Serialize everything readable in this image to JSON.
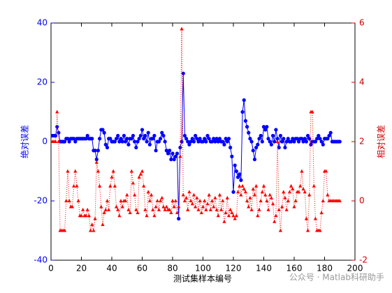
{
  "chart_data": {
    "type": "line",
    "xlabel": "测试集样本编号",
    "ylabel": "绝对误差",
    "y2label": "相对误差",
    "watermark": "公众号 · Matlab科研助手",
    "xlim": [
      0,
      200
    ],
    "xticks": [
      0,
      20,
      40,
      60,
      80,
      100,
      120,
      140,
      160,
      180,
      200
    ],
    "ylim": [
      -40,
      40
    ],
    "yticks": [
      -40,
      -20,
      0,
      20,
      40
    ],
    "y2lim": [
      -2,
      6
    ],
    "y2ticks": [
      -2,
      0,
      2,
      4,
      6
    ],
    "left_axis_color": "#0000ff",
    "right_axis_color": "#cc0000",
    "x": [
      1,
      2,
      3,
      4,
      5,
      6,
      7,
      8,
      9,
      10,
      11,
      12,
      13,
      14,
      15,
      16,
      17,
      18,
      19,
      20,
      21,
      22,
      23,
      24,
      25,
      26,
      27,
      28,
      29,
      30,
      31,
      32,
      33,
      34,
      35,
      36,
      37,
      38,
      39,
      40,
      41,
      42,
      43,
      44,
      45,
      46,
      47,
      48,
      49,
      50,
      51,
      52,
      53,
      54,
      55,
      56,
      57,
      58,
      59,
      60,
      61,
      62,
      63,
      64,
      65,
      66,
      67,
      68,
      69,
      70,
      71,
      72,
      73,
      74,
      75,
      76,
      77,
      78,
      79,
      80,
      81,
      82,
      83,
      84,
      85,
      86,
      87,
      88,
      89,
      90,
      91,
      92,
      93,
      94,
      95,
      96,
      97,
      98,
      99,
      100,
      101,
      102,
      103,
      104,
      105,
      106,
      107,
      108,
      109,
      110,
      111,
      112,
      113,
      114,
      115,
      116,
      117,
      118,
      119,
      120,
      121,
      122,
      123,
      124,
      125,
      126,
      127,
      128,
      129,
      130,
      131,
      132,
      133,
      134,
      135,
      136,
      137,
      138,
      139,
      140,
      141,
      142,
      143,
      144,
      145,
      146,
      147,
      148,
      149,
      150,
      151,
      152,
      153,
      154,
      155,
      156,
      157,
      158,
      159,
      160,
      161,
      162,
      163,
      164,
      165,
      166,
      167,
      168,
      169,
      170,
      171,
      172,
      173,
      174,
      175,
      176,
      177,
      178,
      179,
      180,
      181,
      182,
      183,
      184,
      185,
      186,
      187,
      188,
      189,
      190
    ],
    "series": [
      {
        "color": "#0000ff",
        "style": "solid",
        "marker": "circle",
        "values": [
          2,
          2,
          2,
          5,
          3,
          0,
          0,
          0,
          0,
          1,
          1,
          0,
          1,
          1,
          1,
          0,
          1,
          1,
          1,
          1,
          1,
          1,
          1,
          2,
          1,
          1,
          1,
          -3,
          -3,
          -6,
          -3,
          1,
          4,
          4,
          3,
          -1,
          -2,
          1,
          1,
          0,
          0,
          0,
          1,
          2,
          0,
          1,
          0,
          2,
          0,
          1,
          -1,
          1,
          1,
          2,
          0,
          -2,
          0,
          1,
          2,
          4,
          1,
          2,
          0,
          3,
          -1,
          1,
          1,
          2,
          -3,
          0,
          0,
          1,
          3,
          2,
          0,
          -3,
          -4,
          -3,
          -6,
          -4,
          -6,
          -5,
          -4,
          -26,
          -2,
          0,
          23,
          2,
          1,
          0,
          -1,
          0,
          1,
          0,
          2,
          1,
          0,
          1,
          0,
          0,
          1,
          0,
          2,
          1,
          0,
          0,
          1,
          0,
          1,
          0,
          1,
          0,
          0,
          -1,
          1,
          0,
          1,
          -2,
          -5,
          -17,
          -8,
          -10,
          -12,
          -11,
          -13,
          10,
          14,
          7,
          5,
          3,
          1,
          0,
          -3,
          -6,
          -2,
          -1,
          1,
          2,
          0,
          5,
          4,
          5,
          1,
          0,
          -1,
          2,
          0,
          4,
          1,
          -2,
          2,
          0,
          1,
          -2,
          0,
          1,
          0,
          0,
          1,
          0,
          1,
          1,
          0,
          1,
          1,
          0,
          1,
          0,
          2,
          1,
          -1,
          0,
          0,
          0,
          1,
          2,
          1,
          0,
          -1,
          1,
          1,
          1,
          2,
          3,
          0,
          0,
          0,
          0,
          0,
          0
        ]
      },
      {
        "color": "#ff0000",
        "style": "dotted",
        "marker": "triangle",
        "axis": "y2",
        "values": [
          2,
          2,
          2,
          3,
          2,
          -1,
          -1,
          -1,
          -1,
          0,
          1,
          0,
          -0.2,
          -0.2,
          0.5,
          1,
          0.5,
          0,
          -0.5,
          -0.5,
          -0.3,
          -0.5,
          -0.5,
          -0.3,
          -0.5,
          -1,
          -0.8,
          -1,
          -0.6,
          1.3,
          1,
          0.5,
          -0.2,
          -0.8,
          -0.4,
          -0.3,
          0,
          -0.3,
          0.5,
          0.8,
          1,
          0.5,
          -0.2,
          -0.3,
          -0.5,
          0,
          -0.2,
          0,
          0,
          0.2,
          -0.3,
          -0.4,
          1,
          0.6,
          0.2,
          -0.3,
          -0.4,
          0.8,
          0.9,
          1,
          0.5,
          -0.3,
          -0.5,
          0.3,
          0,
          0.2,
          -0.3,
          -0.5,
          -0.2,
          0,
          -0.3,
          0,
          0.1,
          -0.2,
          -0.3,
          -0.2,
          -0.3,
          -0.3,
          -0.4,
          0,
          -0.2,
          0,
          -0.4,
          -0.2,
          1.5,
          5.8,
          0.2,
          0,
          0.1,
          -0.3,
          0.3,
          0,
          -0.1,
          0.2,
          -0.2,
          0.1,
          -0.3,
          0,
          -0.4,
          -0.2,
          0,
          -0.3,
          -0.1,
          0.2,
          -0.3,
          0,
          -0.2,
          0.1,
          -0.3,
          -0.5,
          0.2,
          -0.3,
          0,
          -0.7,
          -0.4,
          0.1,
          -0.5,
          -0.3,
          -0.4,
          -0.5,
          -0.6,
          -0.5,
          0.3,
          0.5,
          0.2,
          0.5,
          0.4,
          0.3,
          0,
          -0.2,
          0.1,
          -0.3,
          0.4,
          0.2,
          0.5,
          -0.5,
          -0.3,
          0,
          0.3,
          0.5,
          0.2,
          0,
          -0.3,
          0.2,
          0.1,
          -0.1,
          -0.7,
          -0.5,
          2,
          -0.3,
          -1,
          -0.2,
          0.3,
          0.1,
          -0.3,
          0,
          0.3,
          0.5,
          0.4,
          -0.2,
          0,
          0.3,
          0.3,
          0.5,
          1,
          0.4,
          0.3,
          -0.6,
          -1,
          0.2,
          3,
          3,
          0.5,
          -0.6,
          -1,
          -1,
          -1,
          -0.4,
          0,
          1,
          1,
          0.2,
          0,
          0,
          0,
          0,
          0,
          0,
          0,
          0
        ]
      }
    ]
  }
}
